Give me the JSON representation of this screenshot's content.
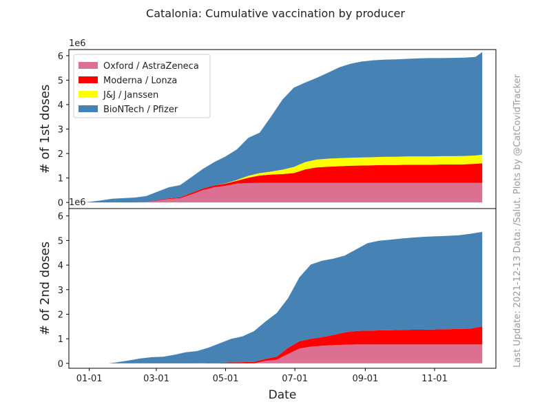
{
  "chart_data": {
    "type": "area",
    "stacked": true,
    "title": "Catalonia: Cumulative vaccination by producer",
    "xlabel": "Date",
    "x_tick_labels": [
      "01-01",
      "03-01",
      "05-01",
      "07-01",
      "09-01",
      "11-01"
    ],
    "x_tick_days": [
      0,
      59,
      120,
      181,
      243,
      304
    ],
    "x_range_days": [
      -18,
      358
    ],
    "side_note": "Last Update: 2021-12-13 Data: /Salut.    Plots by @CatCovidTracker",
    "series_names": [
      "Oxford / AstraZeneca",
      "Moderna / Lonza",
      "J&J / Janssen",
      "BioNTech / Pfizer"
    ],
    "colors": {
      "astrazeneca": "#db7093",
      "moderna": "#ff0000",
      "janssen": "#ffff00",
      "pfizer": "#4682b4"
    },
    "panels": [
      {
        "ylabel": "# of 1st doses",
        "scale_label": "1e6",
        "ylim": [
          -0.25,
          6.25
        ],
        "yticks": [
          0,
          1,
          2,
          3,
          4,
          5,
          6
        ],
        "y_tick_labels": [
          "0",
          "1",
          "2",
          "3",
          "4",
          "5",
          "6"
        ],
        "legend": "upper-left",
        "x_days": [
          -4,
          10,
          20,
          40,
          50,
          60,
          70,
          80,
          90,
          100,
          110,
          120,
          130,
          140,
          150,
          160,
          170,
          180,
          190,
          200,
          210,
          220,
          230,
          240,
          250,
          260,
          270,
          280,
          290,
          300,
          310,
          320,
          330,
          340,
          346
        ],
        "series": [
          {
            "name": "Oxford / AstraZeneca",
            "values": [
              0,
              0,
              0,
              0,
              0.01,
              0.07,
              0.14,
              0.17,
              0.33,
              0.5,
              0.62,
              0.68,
              0.77,
              0.79,
              0.8,
              0.8,
              0.8,
              0.8,
              0.8,
              0.8,
              0.8,
              0.8,
              0.8,
              0.8,
              0.8,
              0.8,
              0.8,
              0.8,
              0.8,
              0.8,
              0.8,
              0.8,
              0.8,
              0.8,
              0.8
            ]
          },
          {
            "name": "Moderna / Lonza",
            "values": [
              0,
              0,
              0,
              0,
              0,
              0.02,
              0.03,
              0.04,
              0.06,
              0.07,
              0.08,
              0.09,
              0.12,
              0.22,
              0.3,
              0.34,
              0.36,
              0.4,
              0.55,
              0.63,
              0.66,
              0.68,
              0.7,
              0.71,
              0.72,
              0.73,
              0.73,
              0.74,
              0.74,
              0.74,
              0.75,
              0.75,
              0.76,
              0.78,
              0.8
            ]
          },
          {
            "name": "J&J / Janssen",
            "values": [
              0,
              0,
              0,
              0,
              0,
              0,
              0,
              0,
              0,
              0,
              0,
              0.01,
              0.03,
              0.08,
              0.1,
              0.12,
              0.18,
              0.25,
              0.3,
              0.32,
              0.33,
              0.33,
              0.33,
              0.33,
              0.33,
              0.34,
              0.34,
              0.34,
              0.34,
              0.34,
              0.34,
              0.34,
              0.34,
              0.34,
              0.35
            ]
          },
          {
            "name": "BioNTech / Pfizer",
            "values": [
              0,
              0.08,
              0.15,
              0.2,
              0.25,
              0.35,
              0.45,
              0.5,
              0.65,
              0.8,
              0.95,
              1.1,
              1.25,
              1.55,
              1.65,
              2.25,
              2.86,
              3.24,
              3.25,
              3.34,
              3.51,
              3.71,
              3.84,
              3.92,
              3.96,
              3.97,
              3.98,
              3.99,
              4.01,
              4.02,
              4.01,
              4.02,
              4.02,
              4.03,
              4.2
            ]
          }
        ]
      },
      {
        "ylabel": "# of 2nd doses",
        "scale_label": "1e6",
        "ylim": [
          -0.2,
          6.3
        ],
        "yticks": [
          0,
          1,
          2,
          3,
          4,
          5,
          6
        ],
        "y_tick_labels": [
          "0",
          "1",
          "2",
          "3",
          "4",
          "5",
          "6"
        ],
        "legend": "",
        "x_days": [
          17,
          25,
          35,
          45,
          55,
          65,
          75,
          85,
          95,
          105,
          115,
          125,
          135,
          145,
          155,
          165,
          175,
          185,
          195,
          205,
          215,
          225,
          235,
          245,
          255,
          265,
          275,
          285,
          295,
          305,
          315,
          325,
          335,
          346
        ],
        "series": [
          {
            "name": "Oxford / AstraZeneca",
            "values": [
              0,
              0,
              0,
              0,
              0,
              0,
              0,
              0,
              0,
              0,
              0,
              0,
              0,
              0,
              0.1,
              0.15,
              0.38,
              0.6,
              0.68,
              0.72,
              0.74,
              0.76,
              0.77,
              0.77,
              0.77,
              0.77,
              0.77,
              0.77,
              0.77,
              0.77,
              0.77,
              0.77,
              0.77,
              0.77
            ]
          },
          {
            "name": "Moderna / Lonza",
            "values": [
              0,
              0,
              0,
              0,
              0,
              0,
              0,
              0,
              0,
              0.01,
              0.02,
              0.04,
              0.05,
              0.06,
              0.08,
              0.12,
              0.25,
              0.3,
              0.32,
              0.35,
              0.42,
              0.5,
              0.55,
              0.56,
              0.57,
              0.58,
              0.59,
              0.6,
              0.6,
              0.61,
              0.62,
              0.63,
              0.64,
              0.73
            ]
          },
          {
            "name": "J&J / Janssen",
            "values": [
              0,
              0,
              0,
              0,
              0,
              0,
              0,
              0,
              0,
              0,
              0,
              0,
              0,
              0,
              0,
              0,
              0,
              0,
              0,
              0,
              0,
              0,
              0,
              0,
              0,
              0,
              0,
              0,
              0,
              0,
              0,
              0,
              0,
              0
            ]
          },
          {
            "name": "BioNTech / Pfizer",
            "values": [
              0,
              0.05,
              0.12,
              0.2,
              0.25,
              0.27,
              0.35,
              0.45,
              0.5,
              0.63,
              0.8,
              0.96,
              1.05,
              1.25,
              1.52,
              1.78,
              2.02,
              2.6,
              3.02,
              3.11,
              3.1,
              3.13,
              3.32,
              3.56,
              3.65,
              3.68,
              3.72,
              3.75,
              3.78,
              3.79,
              3.8,
              3.81,
              3.86,
              3.85
            ]
          }
        ]
      }
    ]
  }
}
